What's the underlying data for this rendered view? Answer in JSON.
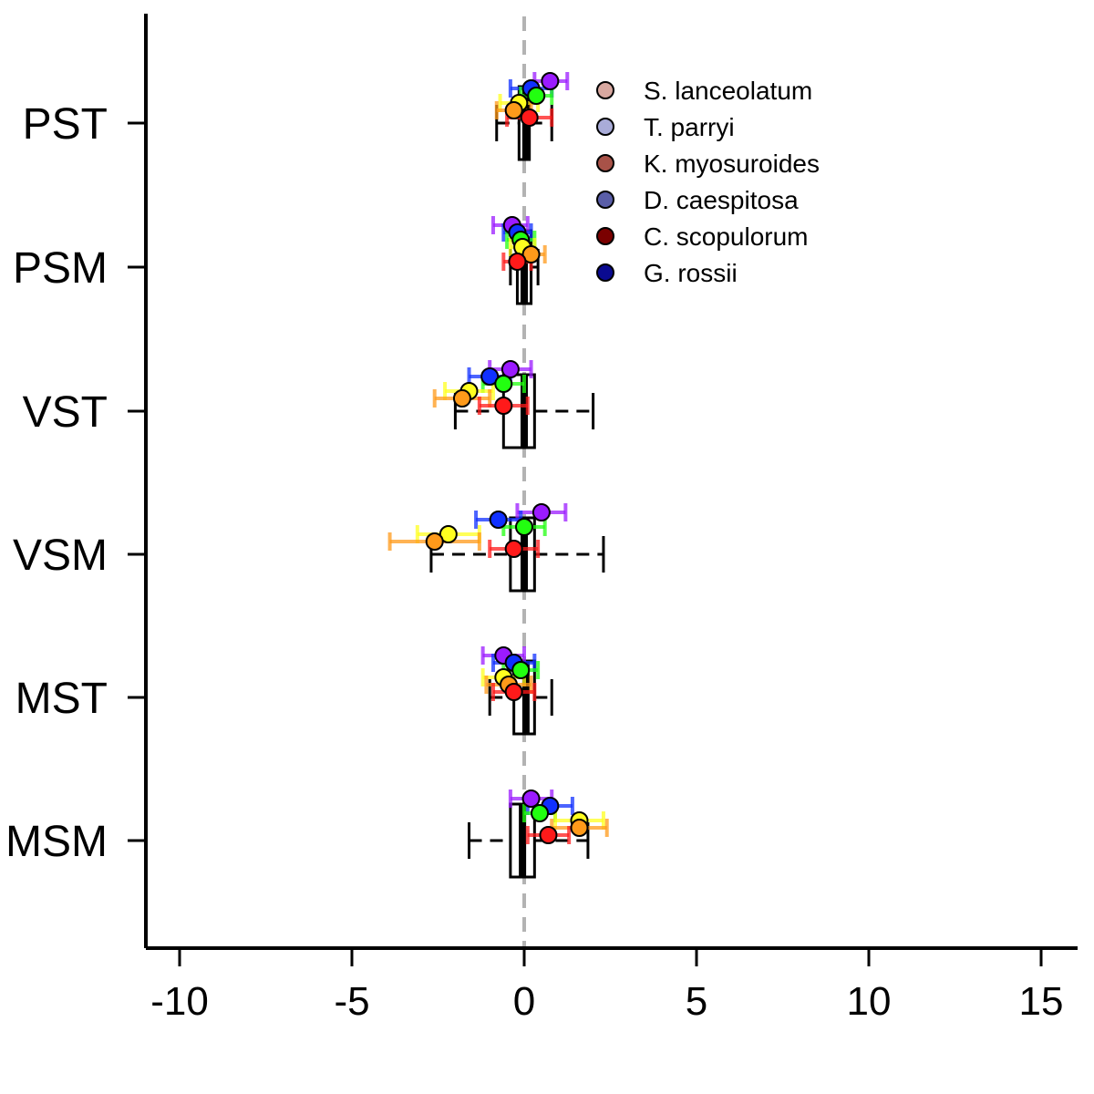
{
  "chart_data": {
    "type": "forest",
    "xlim": [
      -11,
      16
    ],
    "x_ticks": [
      -10,
      -5,
      0,
      5,
      10,
      15
    ],
    "x_tick_labels": [
      "-10",
      "-5",
      "0",
      "5",
      "10",
      "15"
    ],
    "reference_line_x": 0,
    "categories": [
      "PST",
      "PSM",
      "VST",
      "VSM",
      "MST",
      "MSM"
    ],
    "boxplots": [
      {
        "category": "PST",
        "whisker_low": -0.8,
        "q1": -0.15,
        "median": 0.05,
        "q3": 0.15,
        "whisker_high": 0.8
      },
      {
        "category": "PSM",
        "whisker_low": -0.4,
        "q1": -0.2,
        "median": 0.0,
        "q3": 0.2,
        "whisker_high": 0.4
      },
      {
        "category": "VST",
        "whisker_low": -2.0,
        "q1": -0.6,
        "median": 0.0,
        "q3": 0.3,
        "whisker_high": 2.0
      },
      {
        "category": "VSM",
        "whisker_low": -2.7,
        "q1": -0.4,
        "median": 0.0,
        "q3": 0.3,
        "whisker_high": 2.3
      },
      {
        "category": "MST",
        "whisker_low": -1.0,
        "q1": -0.3,
        "median": 0.05,
        "q3": 0.3,
        "whisker_high": 0.8
      },
      {
        "category": "MSM",
        "whisker_low": -1.6,
        "q1": -0.4,
        "median": -0.05,
        "q3": 0.3,
        "whisker_high": 1.85
      }
    ],
    "series": [
      {
        "color": "#9b1bff",
        "values": [
          0.75,
          -0.35,
          -0.4,
          0.5,
          -0.6,
          0.2
        ],
        "lo": [
          0.3,
          -0.9,
          -1.0,
          -0.2,
          -1.2,
          -0.4
        ],
        "hi": [
          1.25,
          0.1,
          0.2,
          1.2,
          0.0,
          0.8
        ]
      },
      {
        "color": "#1030ff",
        "values": [
          0.2,
          -0.2,
          -1.0,
          -0.75,
          -0.3,
          0.75
        ],
        "lo": [
          -0.4,
          -0.6,
          -1.6,
          -1.4,
          -0.9,
          0.1
        ],
        "hi": [
          0.8,
          0.2,
          -0.4,
          -0.1,
          0.3,
          1.4
        ]
      },
      {
        "color": "#22ff10",
        "values": [
          0.35,
          -0.1,
          -0.6,
          0.0,
          -0.1,
          0.45
        ],
        "lo": [
          -0.1,
          -0.5,
          -1.2,
          -0.6,
          -0.6,
          0.0
        ],
        "hi": [
          0.8,
          0.3,
          0.0,
          0.6,
          0.4,
          0.9
        ]
      },
      {
        "color": "#ffff20",
        "values": [
          -0.15,
          -0.05,
          -1.6,
          -2.2,
          -0.6,
          1.6
        ],
        "lo": [
          -0.7,
          -0.4,
          -2.3,
          -3.1,
          -1.2,
          0.9
        ],
        "hi": [
          0.4,
          0.3,
          -0.9,
          -1.3,
          0.0,
          2.3
        ]
      },
      {
        "color": "#ff9a1a",
        "values": [
          -0.3,
          0.2,
          -1.8,
          -2.6,
          -0.45,
          1.6
        ],
        "lo": [
          -0.8,
          -0.2,
          -2.6,
          -3.9,
          -1.1,
          0.8
        ],
        "hi": [
          0.2,
          0.6,
          -1.0,
          -1.3,
          0.2,
          2.4
        ]
      },
      {
        "color": "#ff1a1a",
        "values": [
          0.15,
          -0.2,
          -0.6,
          -0.3,
          -0.3,
          0.7
        ],
        "lo": [
          -0.5,
          -0.6,
          -1.3,
          -1.0,
          -0.9,
          0.1
        ],
        "hi": [
          0.8,
          0.2,
          0.1,
          0.4,
          0.3,
          1.3
        ]
      }
    ],
    "legend": {
      "position": "top-right",
      "entries": [
        {
          "label": "S. lanceolatum",
          "color": "#d8a8a0"
        },
        {
          "label": "T. parryi",
          "color": "#a9acd8"
        },
        {
          "label": "K. myosuroides",
          "color": "#a85248"
        },
        {
          "label": "D. caespitosa",
          "color": "#5a5ea8"
        },
        {
          "label": "C. scopulorum",
          "color": "#7a0000"
        },
        {
          "label": "G. rossii",
          "color": "#0a0a90"
        }
      ]
    }
  }
}
